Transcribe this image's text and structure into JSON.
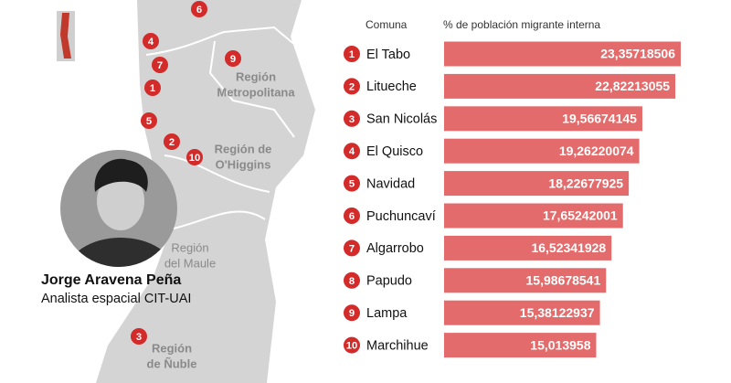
{
  "chart_data": {
    "type": "bar",
    "column_headers": [
      "Comuna",
      "% de población migrante interna"
    ],
    "ranks": [
      1,
      2,
      3,
      4,
      5,
      6,
      7,
      8,
      9,
      10
    ],
    "categories": [
      "El Tabo",
      "Litueche",
      "San Nicolás",
      "El Quisco",
      "Navidad",
      "Puchuncaví",
      "Algarrobo",
      "Papudo",
      "Lampa",
      "Marchihue"
    ],
    "values": [
      23.35718506,
      22.82213055,
      19.56674145,
      19.26220074,
      18.22677925,
      17.65242001,
      16.52341928,
      15.98678541,
      15.38122937,
      15.013958
    ],
    "value_labels": [
      "23,35718506",
      "22,82213055",
      "19,56674145",
      "19,26220074",
      "18,22677925",
      "17,65242001",
      "16,52341928",
      "15,98678541",
      "15,38122937",
      "15,013958"
    ],
    "color": "#e36b6b",
    "rank_color": "#d32a2a"
  },
  "map": {
    "regions": [
      {
        "lines": [
          "Región",
          "Metropolitana"
        ]
      },
      {
        "lines": [
          "Región de",
          "O'Higgins"
        ]
      },
      {
        "lines": [
          "Región",
          "del Maule"
        ]
      },
      {
        "lines": [
          "Región",
          "de Ñuble"
        ]
      }
    ]
  },
  "person": {
    "name": "Jorge Aravena Peña",
    "role": "Analista espacial CIT-UAI"
  }
}
